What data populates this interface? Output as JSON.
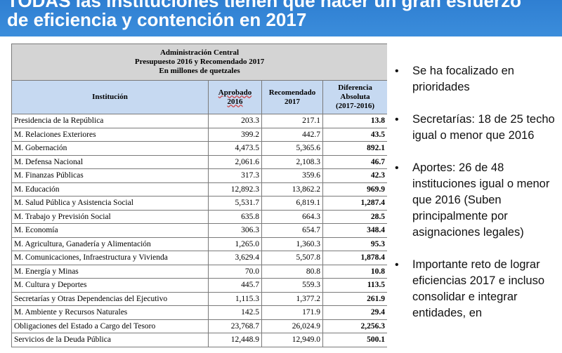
{
  "slide": {
    "title_line1": "TODAS las instituciones tienen que hacer un gran esfuerzo",
    "title_line2": "de eficiencia y contención en 2017"
  },
  "table": {
    "caption_line1": "Administración Central",
    "caption_line2": "Presupuesto 2016 y Recomendado 2017",
    "caption_line3": "En millones de quetzales",
    "headers": {
      "institucion": "Institución",
      "aprobado_1": "Aprobado",
      "aprobado_2": "2016",
      "recomendado_1": "Recomendado",
      "recomendado_2": "2017",
      "diferencia_1": "Diferencia",
      "diferencia_2": "Absoluta",
      "diferencia_3": "(2017-2016)"
    },
    "rows": [
      {
        "institucion": "Presidencia de la República",
        "aprobado": "203.3",
        "recomendado": "217.1",
        "diferencia": "13.8"
      },
      {
        "institucion": "M. Relaciones Exteriores",
        "aprobado": "399.2",
        "recomendado": "442.7",
        "diferencia": "43.5"
      },
      {
        "institucion": "M. Gobernación",
        "aprobado": "4,473.5",
        "recomendado": "5,365.6",
        "diferencia": "892.1"
      },
      {
        "institucion": "M. Defensa Nacional",
        "aprobado": "2,061.6",
        "recomendado": "2,108.3",
        "diferencia": "46.7"
      },
      {
        "institucion": "M. Finanzas Públicas",
        "aprobado": "317.3",
        "recomendado": "359.6",
        "diferencia": "42.3"
      },
      {
        "institucion": "M. Educación",
        "aprobado": "12,892.3",
        "recomendado": "13,862.2",
        "diferencia": "969.9"
      },
      {
        "institucion": "M. Salud Pública y Asistencia Social",
        "aprobado": "5,531.7",
        "recomendado": "6,819.1",
        "diferencia": "1,287.4"
      },
      {
        "institucion": "M. Trabajo  y Previsión Social",
        "aprobado": "635.8",
        "recomendado": "664.3",
        "diferencia": "28.5"
      },
      {
        "institucion": "M. Economía",
        "aprobado": "306.3",
        "recomendado": "654.7",
        "diferencia": "348.4"
      },
      {
        "institucion": "M. Agricultura, Ganadería y Alimentación",
        "aprobado": "1,265.0",
        "recomendado": "1,360.3",
        "diferencia": "95.3"
      },
      {
        "institucion": "M. Comunicaciones, Infraestructura y Vivienda",
        "aprobado": "3,629.4",
        "recomendado": "5,507.8",
        "diferencia": "1,878.4"
      },
      {
        "institucion": "M. Energía y Minas",
        "aprobado": "70.0",
        "recomendado": "80.8",
        "diferencia": "10.8"
      },
      {
        "institucion": "M. Cultura y Deportes",
        "aprobado": "445.7",
        "recomendado": "559.3",
        "diferencia": "113.5"
      },
      {
        "institucion": "Secretarías y Otras Dependencias del Ejecutivo",
        "aprobado": "1,115.3",
        "recomendado": "1,377.2",
        "diferencia": "261.9"
      },
      {
        "institucion": "M. Ambiente y Recursos Naturales",
        "aprobado": "142.5",
        "recomendado": "171.9",
        "diferencia": "29.4"
      },
      {
        "institucion": "Obligaciones del Estado a Cargo del Tesoro",
        "aprobado": "23,768.7",
        "recomendado": "26,024.9",
        "diferencia": "2,256.3"
      },
      {
        "institucion": "Servicios de la Deuda Pública",
        "aprobado": "12,448.9",
        "recomendado": "12,949.0",
        "diferencia": "500.1"
      }
    ]
  },
  "bullets": [
    "Se ha focalizado en prioridades",
    "Secretarías: 18 de 25 techo igual o menor que 2016",
    "Aportes: 26 de 48 instituciones igual o menor que 2016 (Suben principalmente por asignaciones legales)",
    "Importante reto de lograr eficiencias 2017 e incluso consolidar e integrar entidades, en"
  ],
  "bullet_symbol": "•",
  "colors": {
    "title_bar": "#3587d6",
    "caption_bg": "#d4d4d4",
    "header_bg": "#c6d9f1"
  }
}
